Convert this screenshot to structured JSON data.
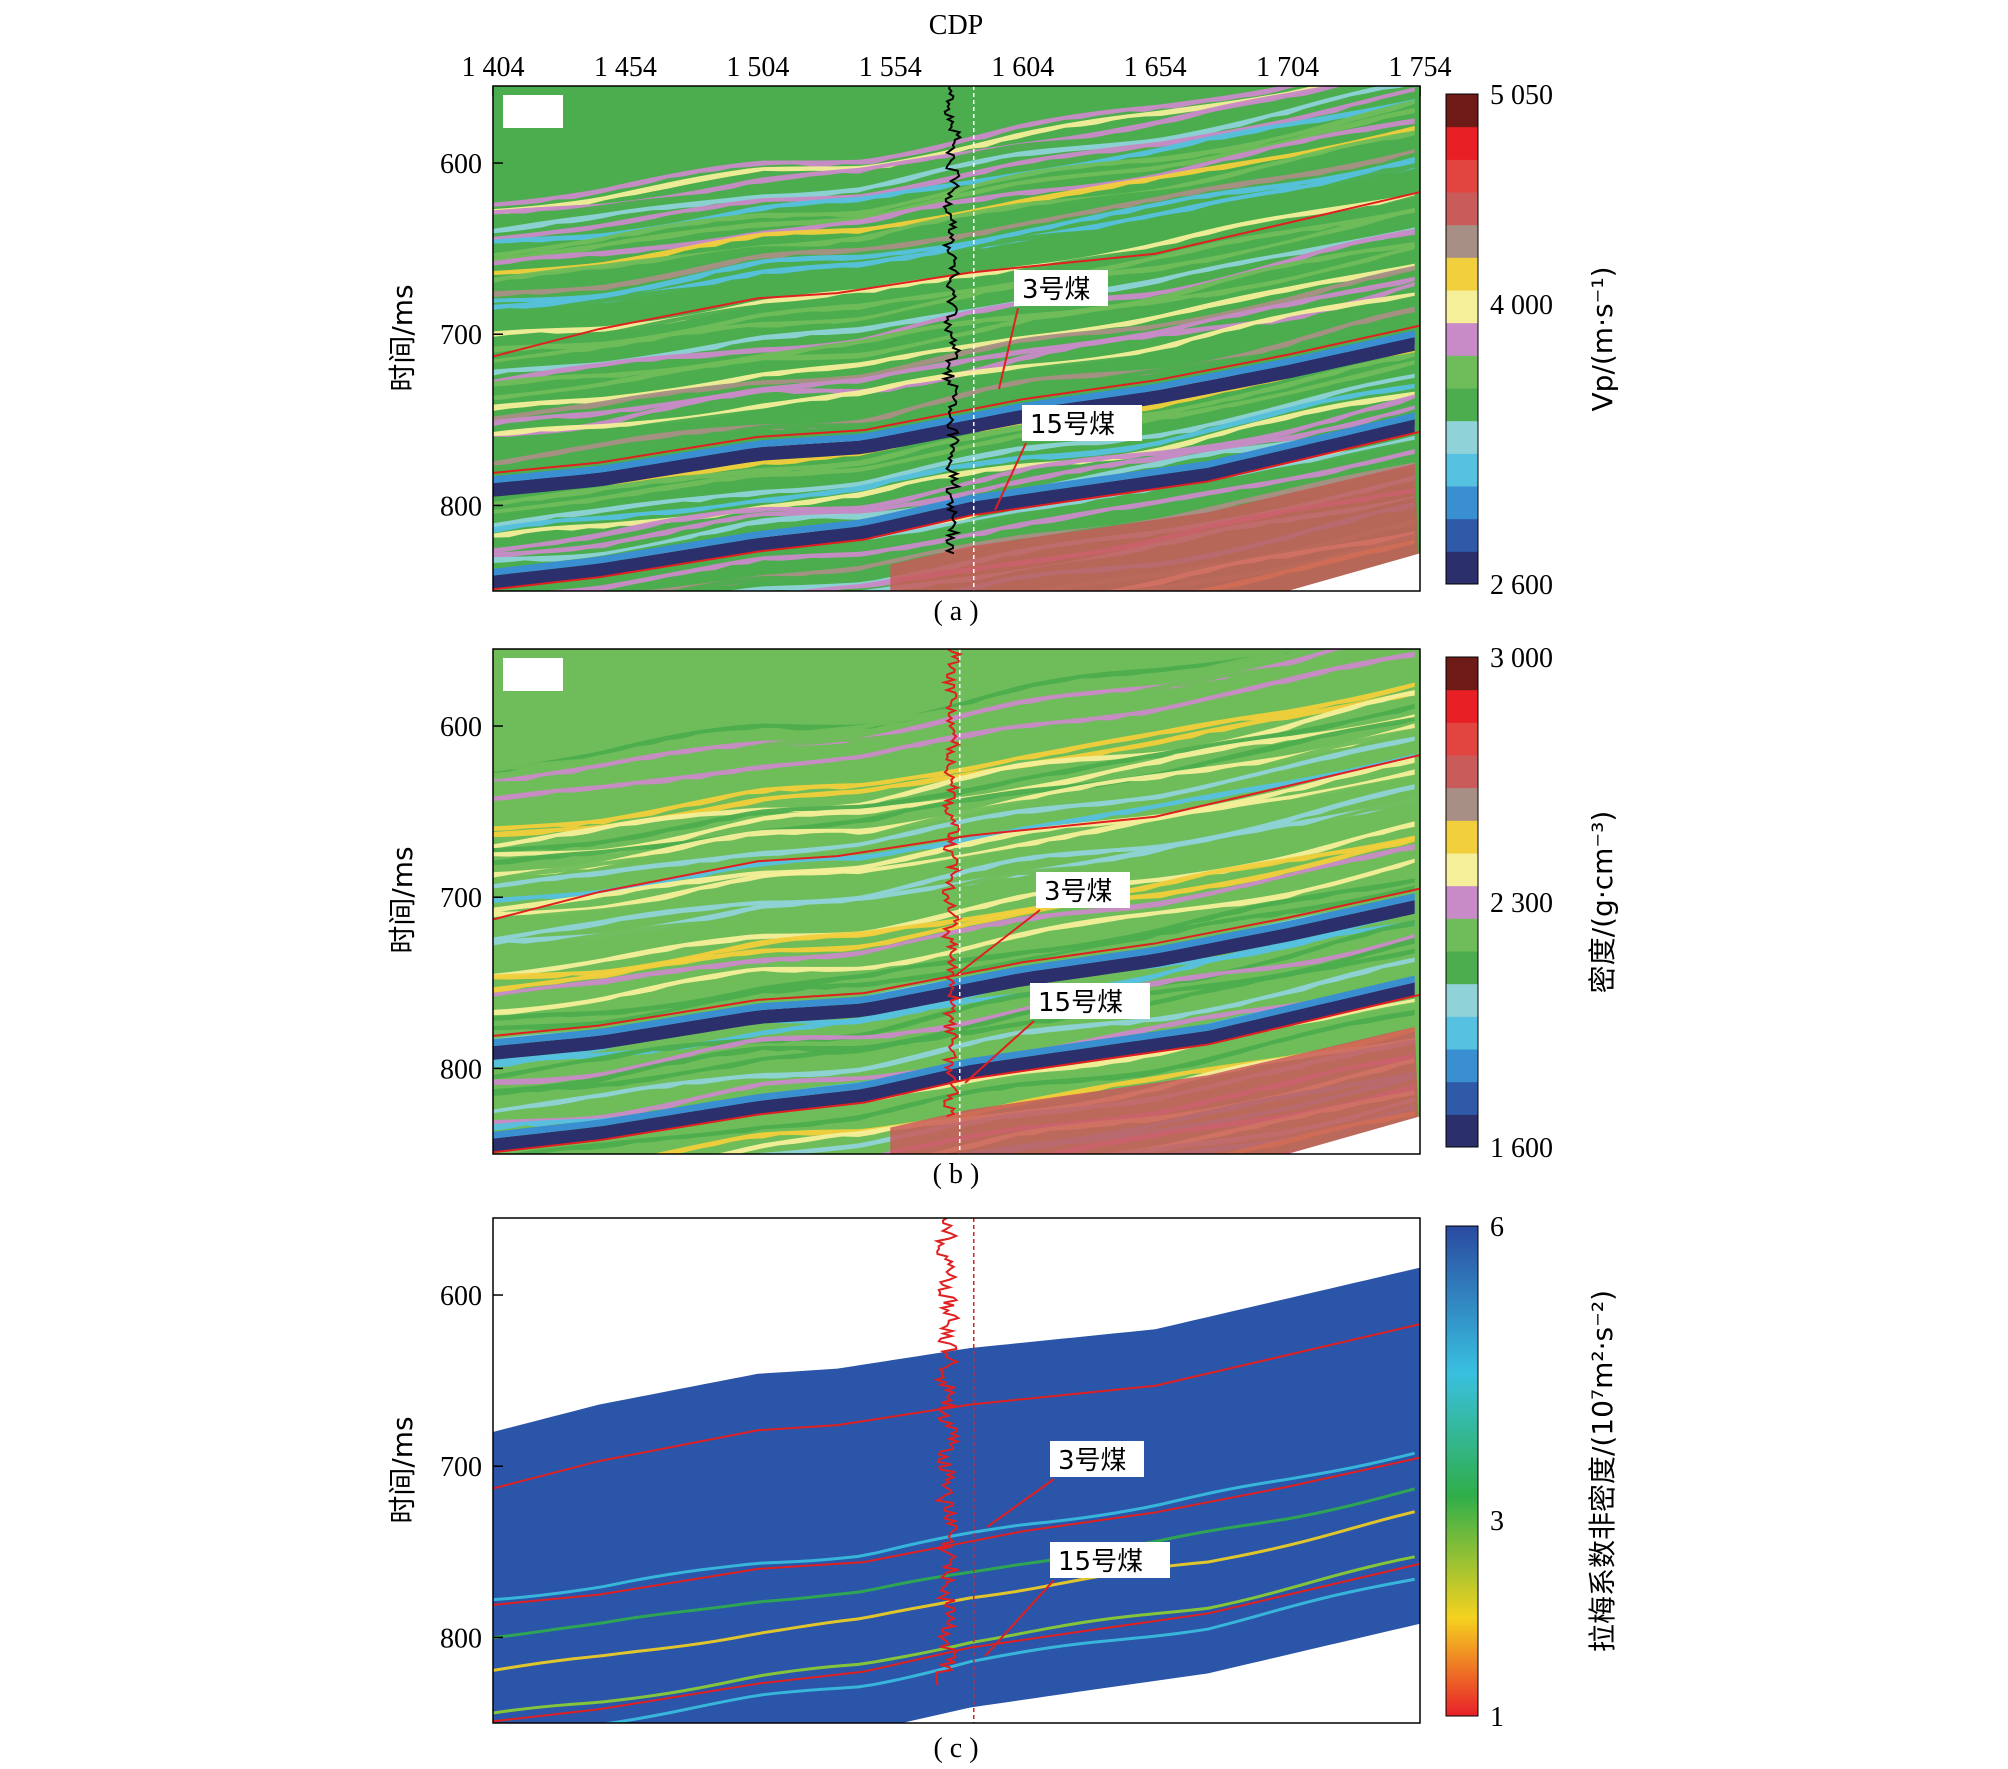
{
  "chart_data": [
    {
      "type": "heatmap",
      "panel_label": "( a )",
      "xlabel": "CDP",
      "ylabel": "时间/ms",
      "colorbar_label": "Vp/(m·s⁻¹)",
      "colorbar_ticks": [
        "5 050",
        "4 000",
        "2 600"
      ],
      "colorbar_range": [
        2600,
        5050
      ],
      "x_ticks": [
        "1 404",
        "1 454",
        "1 504",
        "1 554",
        "1 604",
        "1 654",
        "1 704",
        "1 754"
      ],
      "x_tick_values": [
        1404,
        1454,
        1504,
        1554,
        1604,
        1654,
        1704,
        1754
      ],
      "y_ticks": [
        "600",
        "700",
        "800"
      ],
      "y_tick_values": [
        600,
        700,
        800
      ],
      "xlim": [
        1404,
        1754
      ],
      "ylim": [
        850,
        555
      ],
      "annotations": [
        "3号煤",
        "15号煤"
      ],
      "colormap": [
        "#2b2f6b",
        "#2e5aa8",
        "#3a8fd0",
        "#56c1e0",
        "#8fd3d8",
        "#4cad4e",
        "#6fbd5a",
        "#c98ac8",
        "#f6ef9a",
        "#f2cf3c",
        "#a88f85",
        "#c95b5b",
        "#e2443f",
        "#e81f25",
        "#6e1a17"
      ]
    },
    {
      "type": "heatmap",
      "panel_label": "( b )",
      "ylabel": "时间/ms",
      "colorbar_label": "密度/(g·cm⁻³)",
      "colorbar_ticks": [
        "3 000",
        "2 300",
        "1 600"
      ],
      "colorbar_range": [
        1600,
        3000
      ],
      "y_ticks": [
        "600",
        "700",
        "800"
      ],
      "y_tick_values": [
        600,
        700,
        800
      ],
      "xlim": [
        1404,
        1754
      ],
      "ylim": [
        850,
        555
      ],
      "annotations": [
        "3号煤",
        "15号煤"
      ],
      "colormap": [
        "#2b2f6b",
        "#2e5aa8",
        "#3a8fd0",
        "#56c1e0",
        "#8fd3d8",
        "#4cad4e",
        "#6fbd5a",
        "#c98ac8",
        "#f6ef9a",
        "#f2cf3c",
        "#a88f85",
        "#c95b5b",
        "#e2443f",
        "#e81f25",
        "#6e1a17"
      ]
    },
    {
      "type": "heatmap",
      "panel_label": "( c )",
      "ylabel": "时间/ms",
      "colorbar_label": "拉梅系数非密度/(10⁷m²·s⁻²)",
      "colorbar_ticks": [
        "6",
        "3",
        "1"
      ],
      "colorbar_range": [
        1,
        6
      ],
      "y_ticks": [
        "600",
        "700",
        "800"
      ],
      "y_tick_values": [
        600,
        700,
        800
      ],
      "xlim": [
        1404,
        1754
      ],
      "ylim": [
        850,
        555
      ],
      "annotations": [
        "3号煤",
        "15号煤"
      ],
      "colormap": [
        "#e8202a",
        "#f07a2a",
        "#f5d21f",
        "#8fd12e",
        "#2fae4a",
        "#39c0e0",
        "#2a6bbf",
        "#2a4aa0"
      ]
    }
  ],
  "horizons": {
    "top": [
      [
        1404,
        713
      ],
      [
        1444,
        697
      ],
      [
        1504,
        679
      ],
      [
        1534,
        676
      ],
      [
        1584,
        664
      ],
      [
        1654,
        653
      ],
      [
        1754,
        617
      ]
    ],
    "coal3": [
      [
        1404,
        781
      ],
      [
        1444,
        775
      ],
      [
        1504,
        760
      ],
      [
        1544,
        756
      ],
      [
        1574,
        747
      ],
      [
        1604,
        738
      ],
      [
        1654,
        727
      ],
      [
        1704,
        712
      ],
      [
        1754,
        695
      ]
    ],
    "coal15": [
      [
        1404,
        849
      ],
      [
        1444,
        842
      ],
      [
        1504,
        827
      ],
      [
        1544,
        820
      ],
      [
        1584,
        806
      ],
      [
        1624,
        797
      ],
      [
        1674,
        786
      ],
      [
        1754,
        757
      ]
    ]
  },
  "well": {
    "cdp": 1584
  },
  "colors": {
    "horizon": "#e02020",
    "well_a": "#000000",
    "well_bc": "#e02020"
  }
}
